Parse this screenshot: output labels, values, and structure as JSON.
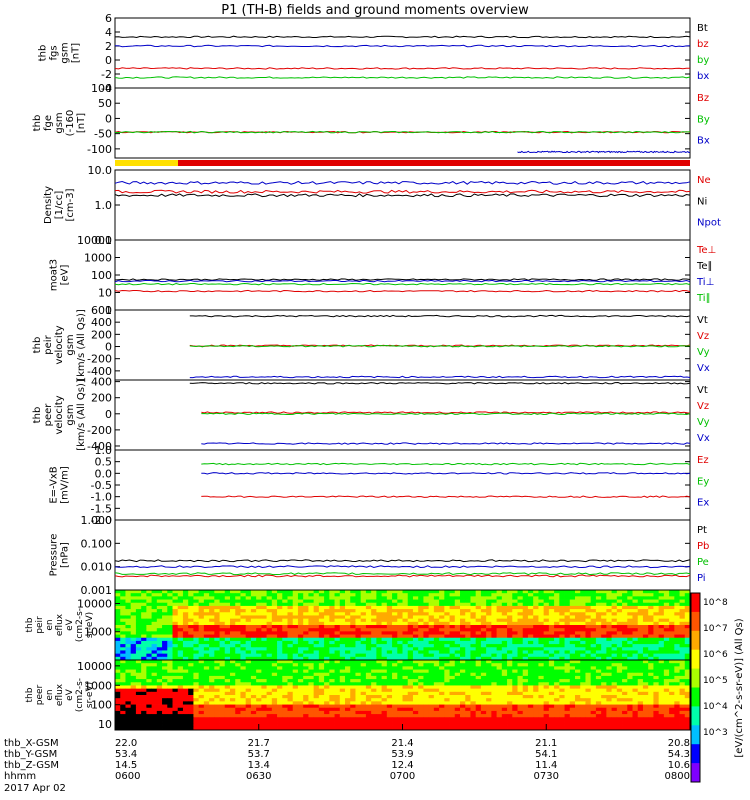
{
  "title": "P1 (TH-B) fields and ground moments overview",
  "colors": {
    "black": "#000000",
    "red": "#e00000",
    "green": "#00c000",
    "blue": "#0000c8",
    "yellow": "#ffe000"
  },
  "chart_data": {
    "type": "line",
    "time_ticks": [
      "0600",
      "0630",
      "0700",
      "0730",
      "0800"
    ],
    "ephemeris": {
      "rows": [
        {
          "label": "thb_X-GSM",
          "values": [
            "22.0",
            "21.7",
            "21.4",
            "21.1",
            "20.8"
          ]
        },
        {
          "label": "thb_Y-GSM",
          "values": [
            "53.4",
            "53.7",
            "53.9",
            "54.1",
            "54.3"
          ]
        },
        {
          "label": "thb_Z-GSM",
          "values": [
            "14.5",
            "13.4",
            "12.4",
            "11.4",
            "10.6"
          ]
        },
        {
          "label": "hhmm",
          "values": [
            "0600",
            "0630",
            "0700",
            "0730",
            "0800"
          ]
        }
      ],
      "date": "2017 Apr 02"
    },
    "panels": [
      {
        "id": "fgs",
        "ylabel": [
          "thb",
          "fgs",
          "gsm",
          "[nT]"
        ],
        "yscale": "linear",
        "ylim": [
          -4,
          6
        ],
        "ticks": [
          "6",
          "4",
          "2",
          "0",
          "-2",
          "-4"
        ],
        "series": [
          {
            "name": "Bt",
            "color": "black",
            "level": 3.3,
            "start": 0.0
          },
          {
            "name": "bz",
            "color": "red",
            "level": -1.2,
            "start": 0.0
          },
          {
            "name": "by",
            "color": "green",
            "level": -2.5,
            "start": 0.0
          },
          {
            "name": "bx",
            "color": "blue",
            "level": 2.0,
            "start": 0.0
          }
        ]
      },
      {
        "id": "fge",
        "ylabel": [
          "thb",
          "fge",
          "gsm",
          "(-160",
          "[nT]"
        ],
        "yscale": "linear",
        "ylim": [
          -130,
          100
        ],
        "ticks": [
          "100",
          "50",
          "0",
          "-50",
          "-100"
        ],
        "series": [
          {
            "name": "Bz",
            "color": "red",
            "level": -45,
            "start": 0.0
          },
          {
            "name": "By",
            "color": "green",
            "level": -45,
            "start": 0.0
          },
          {
            "name": "Bx",
            "color": "blue",
            "level": -110,
            "start": 0.7
          }
        ]
      },
      {
        "id": "density",
        "ylabel": [
          "Density",
          "[1/cc]",
          "[cm-3]"
        ],
        "yscale": "log",
        "ylim": [
          0.1,
          10
        ],
        "ticks": [
          "10.0",
          "1.0",
          "0.1"
        ],
        "series": [
          {
            "name": "Ne",
            "color": "red",
            "level": 2.4,
            "start": 0.0
          },
          {
            "name": "Ni",
            "color": "black",
            "level": 1.9,
            "start": 0.0
          },
          {
            "name": "Npot",
            "color": "blue",
            "level": 4.3,
            "start": 0.0
          }
        ]
      },
      {
        "id": "temp",
        "ylabel": [
          "moat3",
          "[eV]"
        ],
        "yscale": "log",
        "ylim": [
          1,
          10000
        ],
        "ticks": [
          "10000",
          "1000",
          "100",
          "10",
          "1"
        ],
        "series": [
          {
            "name": "Te⊥",
            "color": "red",
            "level": 12,
            "start": 0.0
          },
          {
            "name": "Te∥",
            "color": "black",
            "level": 55,
            "start": 0.0
          },
          {
            "name": "Ti⊥",
            "color": "blue",
            "level": 45,
            "start": 0.0
          },
          {
            "name": "Ti∥",
            "color": "green",
            "level": 30,
            "start": 0.0
          }
        ]
      },
      {
        "id": "vi",
        "ylabel": [
          "thb",
          "peir",
          "velocity",
          "gsm",
          "[km/s (All Qs)]"
        ],
        "yscale": "linear",
        "ylim": [
          -550,
          600
        ],
        "ticks": [
          "600",
          "400",
          "200",
          "0",
          "-200",
          "-400"
        ],
        "series": [
          {
            "name": "Vt",
            "color": "black",
            "level": 500,
            "start": 0.13
          },
          {
            "name": "Vz",
            "color": "red",
            "level": 15,
            "start": 0.13
          },
          {
            "name": "Vy",
            "color": "green",
            "level": 5,
            "start": 0.13
          },
          {
            "name": "Vx",
            "color": "blue",
            "level": -500,
            "start": 0.13
          }
        ]
      },
      {
        "id": "ve",
        "ylabel": [
          "thb",
          "peer",
          "velocity",
          "gsm",
          "[km/s (All Qs)]"
        ],
        "yscale": "linear",
        "ylim": [
          -450,
          420
        ],
        "ticks": [
          "400",
          "200",
          "0",
          "-200",
          "-400"
        ],
        "series": [
          {
            "name": "Vt",
            "color": "black",
            "level": 380,
            "start": 0.13
          },
          {
            "name": "Vz",
            "color": "red",
            "level": 15,
            "start": 0.15
          },
          {
            "name": "Vy",
            "color": "green",
            "level": 0,
            "start": 0.15
          },
          {
            "name": "Vx",
            "color": "blue",
            "level": -370,
            "start": 0.15
          }
        ]
      },
      {
        "id": "efield",
        "ylabel": [
          "E=-VxB",
          "[mV/m]"
        ],
        "yscale": "linear",
        "ylim": [
          -2.0,
          1.0
        ],
        "ticks": [
          "1.0",
          "0.5",
          "0.0",
          "-0.5",
          "-1.0",
          "-1.5",
          "-2.0"
        ],
        "series": [
          {
            "name": "Ez",
            "color": "red",
            "level": -1.0,
            "start": 0.15
          },
          {
            "name": "Ey",
            "color": "green",
            "level": 0.4,
            "start": 0.15
          },
          {
            "name": "Ex",
            "color": "blue",
            "level": 0.0,
            "start": 0.15
          }
        ]
      },
      {
        "id": "pressure",
        "ylabel": [
          "Pressure",
          "[nPa]"
        ],
        "yscale": "log",
        "ylim": [
          0.001,
          1.0
        ],
        "ticks": [
          "1.000",
          "0.100",
          "0.010",
          "0.001"
        ],
        "series": [
          {
            "name": "Pt",
            "color": "black",
            "level": 0.018,
            "start": 0.0
          },
          {
            "name": "Pb",
            "color": "red",
            "level": 0.004,
            "start": 0.0
          },
          {
            "name": "Pe",
            "color": "green",
            "level": 0.005,
            "start": 0.0
          },
          {
            "name": "Pi",
            "color": "blue",
            "level": 0.01,
            "start": 0.0
          }
        ]
      }
    ],
    "spectrograms": [
      {
        "id": "peir",
        "ylabel": [
          "thb",
          "peir",
          "en",
          "eflux",
          "eV",
          "(cm2-s-",
          "sr-eV)"
        ],
        "ticks": [
          "10000",
          "1000"
        ],
        "ylim": [
          100,
          30000
        ]
      },
      {
        "id": "peer",
        "ylabel": [
          "thb",
          "peer",
          "en",
          "eflux",
          "eV",
          "(cm2-s-",
          "sr-eV)"
        ],
        "ticks": [
          "10000",
          "1000",
          "100",
          "10"
        ],
        "ylim": [
          5,
          20000
        ]
      }
    ],
    "colorbar": {
      "label": "[eV/(cm^2-s-sr-eV)] (All Qs)",
      "ticks": [
        "10^8",
        "10^7",
        "10^6",
        "10^5",
        "10^4",
        "10^3"
      ]
    }
  }
}
